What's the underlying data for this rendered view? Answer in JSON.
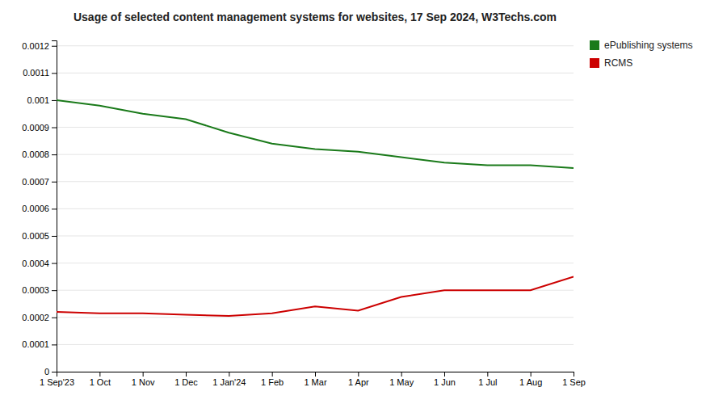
{
  "chart_data": {
    "type": "line",
    "title": "Usage of selected content management systems for websites, 17 Sep 2024, W3Techs.com",
    "categories": [
      "1 Sep'23",
      "1 Oct",
      "1 Nov",
      "1 Dec",
      "1 Jan'24",
      "1 Feb",
      "1 Mar",
      "1 Apr",
      "1 May",
      "1 Jun",
      "1 Jul",
      "1 Aug",
      "1 Sep"
    ],
    "series": [
      {
        "name": "ePublishing systems",
        "color": "#1a7a1a",
        "values": [
          0.001,
          0.00098,
          0.00095,
          0.00093,
          0.00088,
          0.00084,
          0.00082,
          0.00081,
          0.00079,
          0.00077,
          0.00076,
          0.00076,
          0.00075
        ]
      },
      {
        "name": "RCMS",
        "color": "#cc0000",
        "values": [
          0.00022,
          0.000215,
          0.000215,
          0.00021,
          0.000205,
          0.000215,
          0.00024,
          0.000225,
          0.000275,
          0.0003,
          0.0003,
          0.0003,
          0.00035
        ]
      }
    ],
    "ylim": [
      0,
      0.00122
    ],
    "yticks": [
      0,
      0.0001,
      0.0002,
      0.0003,
      0.0004,
      0.0005,
      0.0006,
      0.0007,
      0.0008,
      0.0009,
      0.001,
      0.0011,
      0.0012
    ],
    "grid": true,
    "legend": "right"
  }
}
